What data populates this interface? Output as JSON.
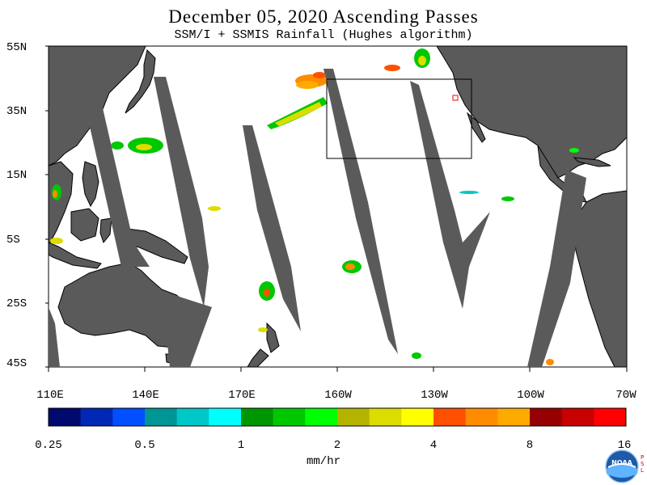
{
  "title": "December 05, 2020  Ascending Passes",
  "subtitle": "SSM/I + SSMIS Rainfall (Hughes algorithm)",
  "lat_labels": [
    "55N",
    "35N",
    "15N",
    "5S",
    "25S",
    "45S"
  ],
  "lon_labels": [
    "110E",
    "140E",
    "170E",
    "160W",
    "130W",
    "100W",
    "70W"
  ],
  "colorbar": {
    "colors": [
      "#000a6e",
      "#0028b4",
      "#0050ff",
      "#009696",
      "#00c8c8",
      "#00ffff",
      "#009600",
      "#00c800",
      "#00ff00",
      "#b4b400",
      "#dcdc00",
      "#ffff00",
      "#ff5000",
      "#ff8c00",
      "#ffaa00",
      "#960000",
      "#c80000",
      "#ff0000"
    ],
    "tick_labels": [
      "0.25",
      "0.5",
      "1",
      "2",
      "4",
      "8",
      "16"
    ],
    "units": "mm/hr"
  },
  "colors": {
    "land": "#5a5a5a",
    "ocean": "#ffffff",
    "gap": "#5a5a5a",
    "box": "#000000"
  },
  "logo_text": "NOAA",
  "psl_text": "P S L"
}
